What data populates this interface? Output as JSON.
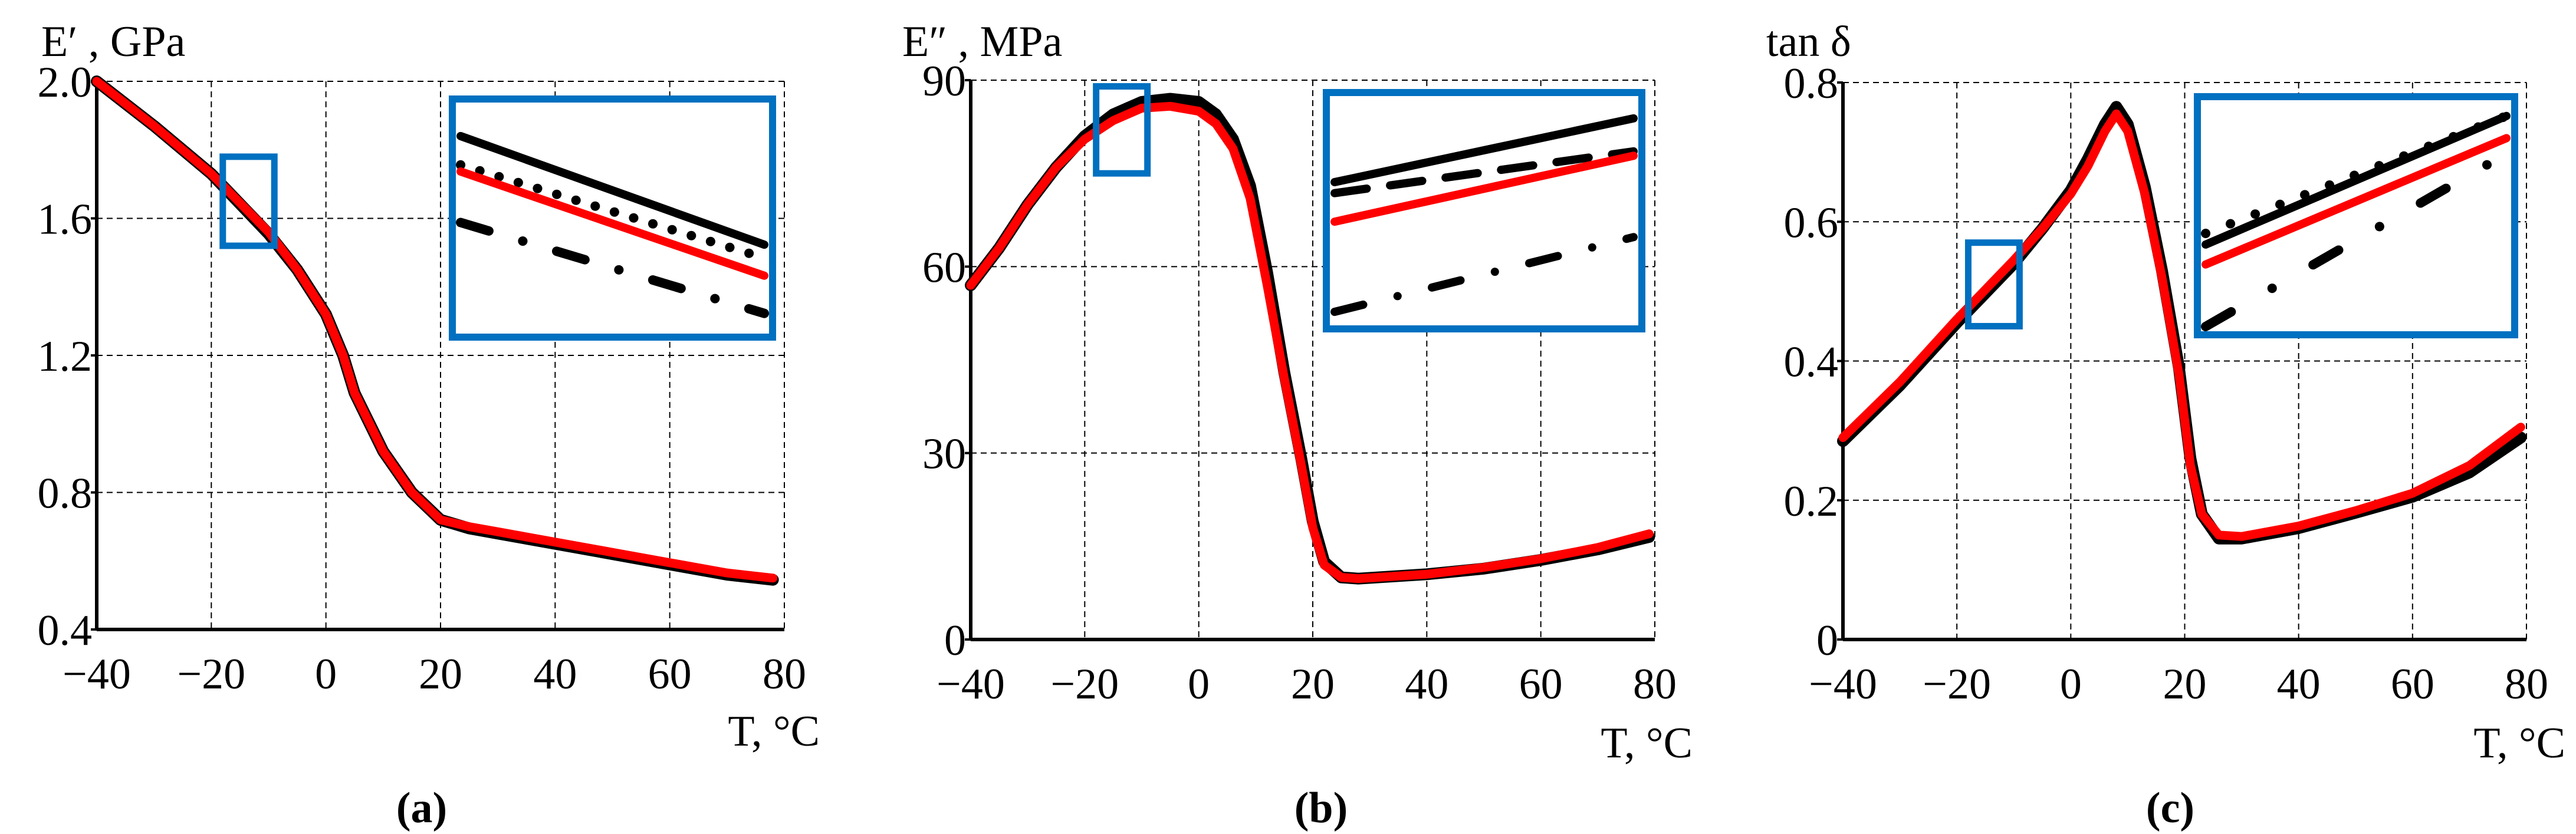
{
  "chart_data": [
    {
      "type": "line",
      "panel_label": "(a)",
      "ylabel": "E′ , GPa",
      "xlabel": "T, °C",
      "xlim": [
        -40,
        80
      ],
      "ylim": [
        0.4,
        2.0
      ],
      "xticks": [
        "−40",
        "−20",
        "0",
        "20",
        "40",
        "60",
        "80"
      ],
      "xtick_values": [
        -40,
        -20,
        0,
        20,
        40,
        60,
        80
      ],
      "yticks": [
        "0.4",
        "0.8",
        "1.2",
        "1.6",
        "2.0"
      ],
      "ytick_values": [
        0.4,
        0.8,
        1.2,
        1.6,
        2.0
      ],
      "grid": true,
      "series": [
        {
          "style": "black-solid",
          "color": "#000000",
          "x": [
            -40,
            -30,
            -20,
            -10,
            -5,
            0,
            3,
            5,
            10,
            15,
            20,
            25,
            30,
            40,
            50,
            60,
            70,
            78
          ],
          "y": [
            2.0,
            1.87,
            1.73,
            1.555,
            1.45,
            1.32,
            1.2,
            1.09,
            0.92,
            0.8,
            0.72,
            0.695,
            0.68,
            0.65,
            0.62,
            0.59,
            0.56,
            0.545
          ]
        },
        {
          "style": "red-solid",
          "color": "#ff0000",
          "x": [
            -40,
            -30,
            -20,
            -10,
            -5,
            0,
            3,
            5,
            10,
            15,
            20,
            25,
            30,
            40,
            50,
            60,
            70,
            78
          ],
          "y": [
            2.0,
            1.87,
            1.73,
            1.56,
            1.45,
            1.32,
            1.2,
            1.09,
            0.92,
            0.8,
            0.72,
            0.7,
            0.685,
            0.655,
            0.625,
            0.595,
            0.565,
            0.55
          ]
        }
      ],
      "inset": {
        "xlim": [
          -18,
          -9
        ],
        "ylim": [
          1.52,
          1.78
        ],
        "frame_color": "#0070c0"
      }
    },
    {
      "type": "line",
      "panel_label": "(b)",
      "ylabel": "E″ , MPa",
      "xlabel": "T, °C",
      "xlim": [
        -40,
        80
      ],
      "ylim": [
        0,
        90
      ],
      "xticks": [
        "−40",
        "−20",
        "0",
        "20",
        "40",
        "60",
        "80"
      ],
      "xtick_values": [
        -40,
        -20,
        0,
        20,
        40,
        60,
        80
      ],
      "yticks": [
        "0",
        "30",
        "60",
        "90"
      ],
      "ytick_values": [
        0,
        30,
        60,
        90
      ],
      "grid": true,
      "series": [
        {
          "style": "black-solid",
          "color": "#000000",
          "x": [
            -40,
            -35,
            -30,
            -25,
            -20,
            -15,
            -10,
            -5,
            0,
            3,
            6,
            9,
            12,
            15,
            18,
            20,
            22,
            25,
            28,
            40,
            50,
            60,
            70,
            79
          ],
          "y": [
            57,
            63,
            70,
            76,
            81,
            84.5,
            86.5,
            87,
            86.5,
            84.5,
            80.5,
            73,
            59,
            43,
            29,
            19,
            12.5,
            10,
            9.8,
            10.5,
            11.4,
            12.8,
            14.5,
            16.5
          ]
        },
        {
          "style": "red-solid",
          "color": "#ff0000",
          "x": [
            -40,
            -35,
            -30,
            -25,
            -20,
            -15,
            -10,
            -5,
            0,
            3,
            6,
            9,
            12,
            15,
            18,
            20,
            22,
            25,
            28,
            40,
            50,
            60,
            70,
            79
          ],
          "y": [
            57,
            63,
            70,
            76,
            80.5,
            83.5,
            85.5,
            85.8,
            85,
            83,
            79,
            71,
            57,
            42,
            28,
            18,
            12,
            10,
            9.8,
            10.5,
            11.6,
            13,
            14.8,
            17
          ]
        }
      ],
      "inset": {
        "xlim": [
          -18,
          -9
        ],
        "ylim": [
          75,
          89
        ],
        "frame_color": "#0070c0"
      }
    },
    {
      "type": "line",
      "panel_label": "(c)",
      "ylabel": "tan δ",
      "xlabel": "T, °C",
      "xlim": [
        -40,
        80
      ],
      "ylim": [
        0,
        0.8
      ],
      "xticks": [
        "−40",
        "−20",
        "0",
        "20",
        "40",
        "60",
        "80"
      ],
      "xtick_values": [
        -40,
        -20,
        0,
        20,
        40,
        60,
        80
      ],
      "yticks": [
        "0",
        "0.2",
        "0.4",
        "0.6",
        "0.8"
      ],
      "ytick_values": [
        0,
        0.2,
        0.4,
        0.6,
        0.8
      ],
      "grid": true,
      "series": [
        {
          "style": "black-solid",
          "color": "#000000",
          "x": [
            -40,
            -30,
            -20,
            -10,
            -5,
            0,
            3,
            6,
            8,
            10,
            13,
            16,
            19,
            21,
            23,
            26,
            30,
            40,
            50,
            60,
            70,
            79
          ],
          "y": [
            0.285,
            0.365,
            0.455,
            0.54,
            0.59,
            0.645,
            0.69,
            0.74,
            0.765,
            0.74,
            0.65,
            0.53,
            0.39,
            0.26,
            0.18,
            0.145,
            0.145,
            0.16,
            0.182,
            0.205,
            0.24,
            0.29
          ]
        },
        {
          "style": "red-solid",
          "color": "#ff0000",
          "x": [
            -40,
            -30,
            -20,
            -10,
            -5,
            0,
            3,
            6,
            8,
            10,
            13,
            16,
            19,
            21,
            23,
            26,
            30,
            40,
            50,
            60,
            70,
            79
          ],
          "y": [
            0.29,
            0.37,
            0.46,
            0.545,
            0.59,
            0.64,
            0.68,
            0.73,
            0.755,
            0.73,
            0.64,
            0.52,
            0.38,
            0.25,
            0.18,
            0.15,
            0.148,
            0.163,
            0.185,
            0.21,
            0.25,
            0.305
          ]
        }
      ],
      "inset": {
        "xlim": [
          -18,
          -9
        ],
        "ylim": [
          0.45,
          0.57
        ],
        "frame_color": "#0070c0"
      }
    }
  ]
}
